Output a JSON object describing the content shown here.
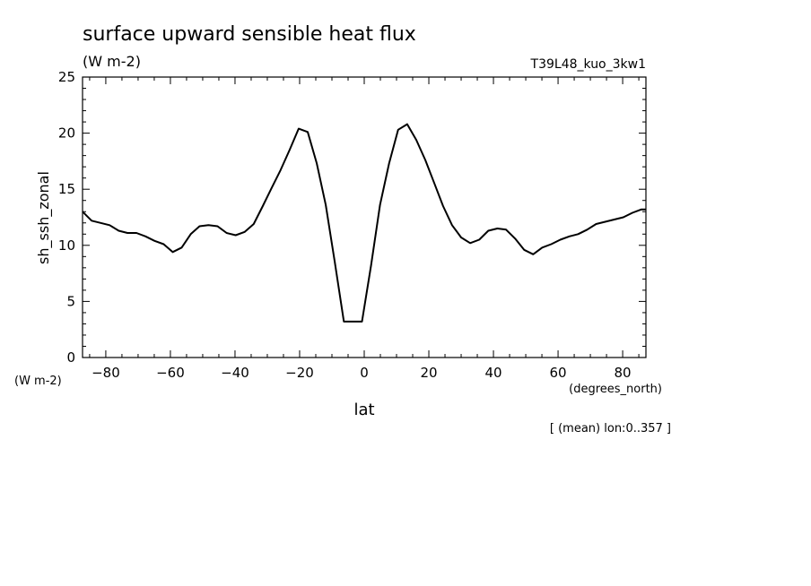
{
  "chart_data": {
    "type": "line",
    "title": "surface upward sensible heat flux",
    "units": "(W m-2)",
    "run_label": "T39L48_kuo_3kw1",
    "ylabel": "sh_ssh_zonal",
    "y_units": "(W m-2)",
    "xlabel": "lat",
    "x_units": "(degrees_north)",
    "footnote": "[ (mean) lon:0..357 ]",
    "xlim": [
      -87.2,
      87.2
    ],
    "ylim": [
      0,
      25
    ],
    "x_ticks": [
      -80,
      -60,
      -40,
      -20,
      0,
      20,
      40,
      60,
      80
    ],
    "y_ticks": [
      0,
      5,
      10,
      15,
      20,
      25
    ],
    "grid": false,
    "series": [
      {
        "x": [
          -87.2,
          -84.4,
          -81.6,
          -78.8,
          -76.0,
          -73.3,
          -70.5,
          -67.7,
          -64.9,
          -62.1,
          -59.3,
          -56.5,
          -53.7,
          -51.0,
          -48.2,
          -45.4,
          -42.6,
          -39.8,
          -37.0,
          -34.2,
          -31.4,
          -28.7,
          -25.9,
          -23.1,
          -20.3,
          -17.5,
          -14.7,
          -11.9,
          -9.1,
          -6.3,
          -3.5,
          -0.7,
          2.1,
          4.9,
          7.7,
          10.5,
          13.3,
          16.1,
          18.9,
          21.6,
          24.4,
          27.2,
          30.0,
          32.8,
          35.6,
          38.4,
          41.2,
          43.9,
          46.7,
          49.5,
          52.3,
          55.1,
          57.9,
          60.7,
          63.5,
          66.2,
          69.0,
          71.8,
          74.6,
          77.4,
          80.2,
          83.0,
          85.8,
          87.2
        ],
        "y": [
          13.0,
          12.2,
          12.0,
          11.8,
          11.3,
          11.1,
          11.1,
          10.8,
          10.4,
          10.1,
          9.4,
          9.8,
          11.0,
          11.7,
          11.8,
          11.7,
          11.1,
          10.9,
          11.2,
          11.9,
          13.5,
          15.1,
          16.7,
          18.5,
          20.4,
          20.1,
          17.3,
          13.6,
          8.5,
          3.2,
          3.2,
          3.2,
          8.2,
          13.6,
          17.3,
          20.3,
          20.8,
          19.4,
          17.6,
          15.6,
          13.5,
          11.8,
          10.7,
          10.2,
          10.5,
          11.3,
          11.5,
          11.4,
          10.6,
          9.6,
          9.2,
          9.8,
          10.1,
          10.5,
          10.8,
          11.0,
          11.4,
          11.9,
          12.1,
          12.3,
          12.5,
          12.9,
          13.2,
          13.2
        ]
      }
    ]
  }
}
